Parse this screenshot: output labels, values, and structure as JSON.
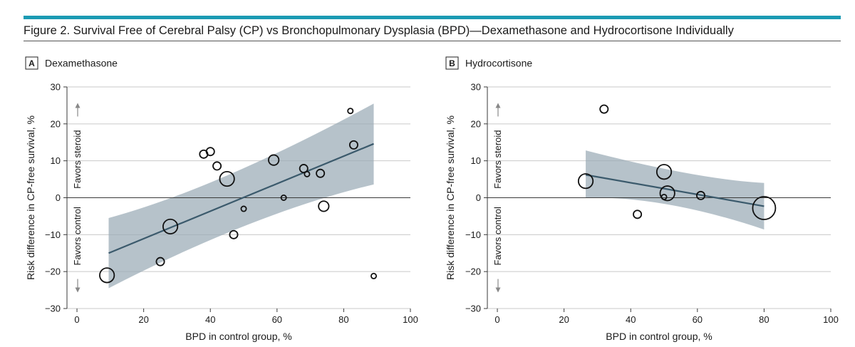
{
  "figure": {
    "title": "Figure 2. Survival Free of Cerebral Palsy (CP) vs Bronchopulmonary Dysplasia (BPD)—Dexamethasone and Hydrocortisone Individually",
    "accent_color": "#1b9bb3"
  },
  "chart_data": [
    {
      "type": "scatter",
      "panel_letter": "A",
      "title": "Dexamethasone",
      "xlabel": "BPD in control group, %",
      "ylabel": "Risk difference in CP-free survival, %",
      "favors_up": "Favors steroid",
      "favors_down": "Favors control",
      "xlim": [
        -3,
        100
      ],
      "ylim": [
        -30,
        30
      ],
      "xticks": [
        0,
        20,
        40,
        60,
        80,
        100
      ],
      "yticks": [
        30,
        20,
        10,
        0,
        -10,
        -20,
        -30
      ],
      "xtick_labels": [
        "0",
        "20",
        "40",
        "60",
        "80",
        "100"
      ],
      "ytick_labels": [
        "30",
        "20",
        "10",
        "0",
        "−10",
        "−20",
        "−30"
      ],
      "points": [
        {
          "x": 9,
          "y": -21,
          "size": "large"
        },
        {
          "x": 25,
          "y": -17.3,
          "size": "small"
        },
        {
          "x": 28,
          "y": -7.8,
          "size": "large"
        },
        {
          "x": 38,
          "y": 11.8,
          "size": "small"
        },
        {
          "x": 40,
          "y": 12.5,
          "size": "small"
        },
        {
          "x": 42,
          "y": 8.6,
          "size": "small"
        },
        {
          "x": 45,
          "y": 5.1,
          "size": "large"
        },
        {
          "x": 47,
          "y": -10,
          "size": "small"
        },
        {
          "x": 50,
          "y": -3,
          "size": "tiny"
        },
        {
          "x": 59,
          "y": 10.2,
          "size": "medium"
        },
        {
          "x": 62,
          "y": 0,
          "size": "tiny"
        },
        {
          "x": 68,
          "y": 7.9,
          "size": "small"
        },
        {
          "x": 69,
          "y": 6.4,
          "size": "tiny"
        },
        {
          "x": 73,
          "y": 6.6,
          "size": "small"
        },
        {
          "x": 74,
          "y": -2.3,
          "size": "medium"
        },
        {
          "x": 82,
          "y": 23.5,
          "size": "tiny"
        },
        {
          "x": 83,
          "y": 14.3,
          "size": "small"
        },
        {
          "x": 89,
          "y": -21.2,
          "size": "tiny"
        }
      ],
      "fit_line": {
        "x": [
          9.5,
          89
        ],
        "y": [
          -15,
          14.6
        ]
      },
      "confidence_band": {
        "x": [
          9.5,
          89
        ],
        "upper": [
          -5.5,
          25.5
        ],
        "lower": [
          -24.5,
          3.6
        ],
        "upper_mid": {
          "x": 42,
          "y": 2.5
        },
        "lower_mid": {
          "x": 53,
          "y": -4.2
        }
      },
      "band_color": "#9aabb5",
      "line_color": "#3b5a6c"
    },
    {
      "type": "scatter",
      "panel_letter": "B",
      "title": "Hydrocortisone",
      "xlabel": "BPD in control group, %",
      "ylabel": "Risk difference in CP-free survival, %",
      "favors_up": "Favors steroid",
      "favors_down": "Favors control",
      "xlim": [
        -3,
        100
      ],
      "ylim": [
        -30,
        30
      ],
      "xticks": [
        0,
        20,
        40,
        60,
        80,
        100
      ],
      "yticks": [
        30,
        20,
        10,
        0,
        -10,
        -20,
        -30
      ],
      "xtick_labels": [
        "0",
        "20",
        "40",
        "60",
        "80",
        "100"
      ],
      "ytick_labels": [
        "30",
        "20",
        "10",
        "0",
        "−10",
        "−20",
        "−30"
      ],
      "points": [
        {
          "x": 26.5,
          "y": 4.5,
          "size": "large"
        },
        {
          "x": 32,
          "y": 24,
          "size": "small"
        },
        {
          "x": 42,
          "y": -4.5,
          "size": "small"
        },
        {
          "x": 50,
          "y": 7,
          "size": "large"
        },
        {
          "x": 50,
          "y": 0.2,
          "size": "tiny"
        },
        {
          "x": 51,
          "y": 1.2,
          "size": "large"
        },
        {
          "x": 61,
          "y": 0.6,
          "size": "small"
        },
        {
          "x": 80,
          "y": -2.8,
          "size": "xlarge"
        }
      ],
      "fit_line": {
        "x": [
          26.5,
          80
        ],
        "y": [
          6.2,
          -2.3
        ]
      },
      "confidence_band": {
        "x": [
          26.5,
          80
        ],
        "upper": [
          12.8,
          4
        ],
        "lower": [
          0,
          -8.6
        ],
        "upper_mid": {
          "x": 60,
          "y": 5
        },
        "lower_mid": {
          "x": 50,
          "y": 0.5
        }
      },
      "band_color": "#9aabb5",
      "line_color": "#3b5a6c"
    }
  ]
}
